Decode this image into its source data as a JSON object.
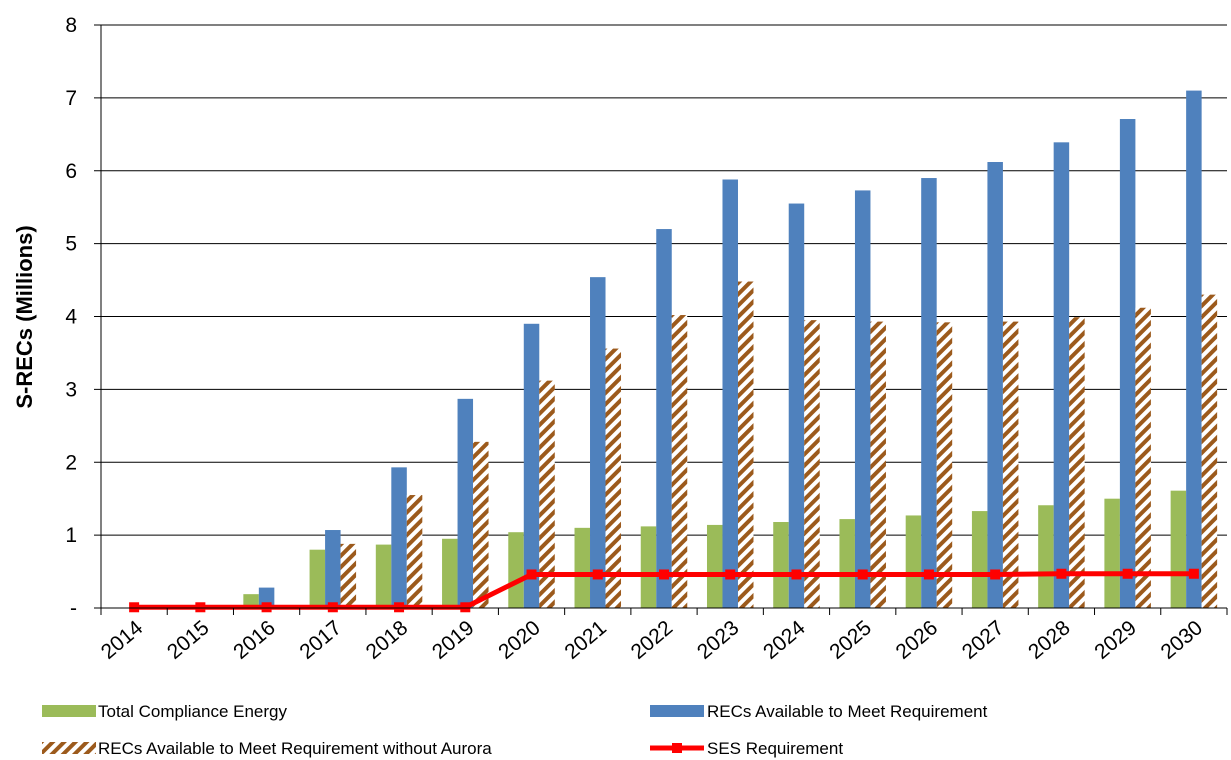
{
  "chart_data": {
    "type": "bar",
    "title": "",
    "xlabel": "",
    "ylabel": "S-RECs (Millions)",
    "ylim": [
      0,
      8
    ],
    "yticks": [
      {
        "value": 0,
        "label": "-"
      },
      {
        "value": 1,
        "label": "1"
      },
      {
        "value": 2,
        "label": "2"
      },
      {
        "value": 3,
        "label": "3"
      },
      {
        "value": 4,
        "label": "4"
      },
      {
        "value": 5,
        "label": "5"
      },
      {
        "value": 6,
        "label": "6"
      },
      {
        "value": 7,
        "label": "7"
      },
      {
        "value": 8,
        "label": "8"
      }
    ],
    "grid": true,
    "legend_position": "bottom",
    "categories": [
      "2014",
      "2015",
      "2016",
      "2017",
      "2018",
      "2019",
      "2020",
      "2021",
      "2022",
      "2023",
      "2024",
      "2025",
      "2026",
      "2027",
      "2028",
      "2029",
      "2030"
    ],
    "series": [
      {
        "name": "Total Compliance Energy",
        "kind": "bar",
        "color": "#9bbb59",
        "values": [
          0,
          0.02,
          0.19,
          0.8,
          0.87,
          0.95,
          1.04,
          1.1,
          1.12,
          1.14,
          1.18,
          1.22,
          1.27,
          1.33,
          1.41,
          1.5,
          1.61
        ]
      },
      {
        "name": "RECs Available to Meet Requirement",
        "kind": "bar",
        "color": "#4f81bd",
        "values": [
          0,
          0.03,
          0.28,
          1.07,
          1.93,
          2.87,
          3.9,
          4.54,
          5.2,
          5.88,
          5.55,
          5.73,
          5.9,
          6.12,
          6.39,
          6.71,
          7.1
        ]
      },
      {
        "name": "RECs Available to Meet Requirement without Aurora",
        "kind": "hatched-bar",
        "color": "#9c5a1c",
        "values": [
          0,
          0,
          0,
          0.88,
          1.55,
          2.28,
          3.12,
          3.56,
          4.02,
          4.48,
          3.95,
          3.93,
          3.92,
          3.93,
          3.99,
          4.12,
          4.3
        ]
      },
      {
        "name": "SES Requirement",
        "kind": "line",
        "color": "#ff0000",
        "values": [
          0.01,
          0.01,
          0.01,
          0.01,
          0.01,
          0.01,
          0.46,
          0.46,
          0.46,
          0.46,
          0.46,
          0.46,
          0.46,
          0.46,
          0.47,
          0.47,
          0.47
        ]
      }
    ]
  }
}
